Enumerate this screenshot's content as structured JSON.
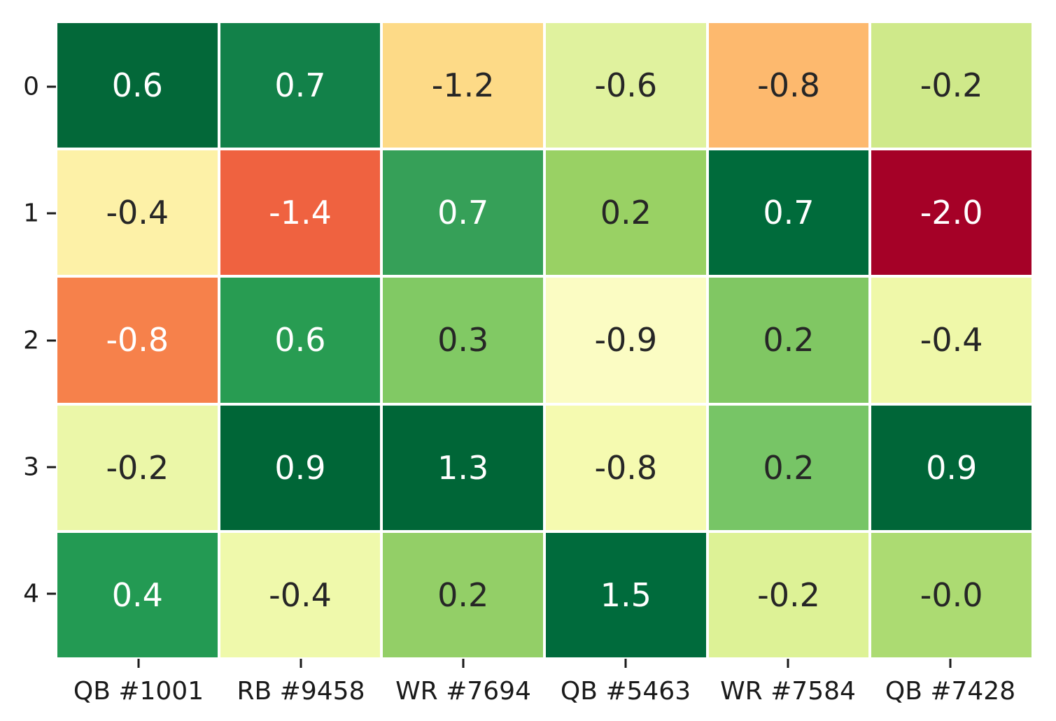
{
  "chart_data": {
    "type": "heatmap",
    "title": "",
    "xlabel": "",
    "ylabel": "",
    "colormap": "RdYlGn",
    "columns": [
      "QB #1001",
      "RB #9458",
      "WR #7694",
      "QB #5463",
      "WR #7584",
      "QB #7428"
    ],
    "rows": [
      "0",
      "1",
      "2",
      "3",
      "4"
    ],
    "values": [
      [
        0.6,
        0.7,
        -1.2,
        -0.6,
        -0.8,
        -0.2
      ],
      [
        -0.4,
        -1.4,
        0.7,
        0.2,
        0.7,
        -2.0
      ],
      [
        -0.8,
        0.6,
        0.3,
        -0.9,
        0.2,
        -0.4
      ],
      [
        -0.2,
        0.9,
        1.3,
        -0.8,
        0.2,
        0.9
      ],
      [
        0.4,
        -0.4,
        0.2,
        1.5,
        -0.2,
        -0.0
      ]
    ],
    "value_labels": [
      [
        "0.6",
        "0.7",
        "-1.2",
        "-0.6",
        "-0.8",
        "-0.2"
      ],
      [
        "-0.4",
        "-1.4",
        "0.7",
        "0.2",
        "0.7",
        "-2.0"
      ],
      [
        "-0.8",
        "0.6",
        "0.3",
        "-0.9",
        "0.2",
        "-0.4"
      ],
      [
        "-0.2",
        "0.9",
        "1.3",
        "-0.8",
        "0.2",
        "0.9"
      ],
      [
        "0.4",
        "-0.4",
        "0.2",
        "1.5",
        "-0.2",
        "-0.0"
      ]
    ],
    "cell_colors": [
      [
        "#036839",
        "#128149",
        "#fdda87",
        "#e0f29e",
        "#fdb96e",
        "#cfe98a"
      ],
      [
        "#fdf1a7",
        "#ef6240",
        "#36a058",
        "#99d164",
        "#006b3b",
        "#a50127"
      ],
      [
        "#f6814b",
        "#289c52",
        "#81c964",
        "#fbfcc3",
        "#80c763",
        "#eff8a9"
      ],
      [
        "#ebf7a8",
        "#006637",
        "#006637",
        "#f5fab0",
        "#77c566",
        "#006638"
      ],
      [
        "#239a53",
        "#eff9ab",
        "#93cf67",
        "#006b3c",
        "#ddf296",
        "#acdb72"
      ]
    ],
    "text_colors": [
      [
        "#ffffff",
        "#ffffff",
        "#262626",
        "#262626",
        "#262626",
        "#262626"
      ],
      [
        "#262626",
        "#ffffff",
        "#ffffff",
        "#262626",
        "#ffffff",
        "#ffffff"
      ],
      [
        "#ffffff",
        "#ffffff",
        "#262626",
        "#262626",
        "#262626",
        "#262626"
      ],
      [
        "#262626",
        "#ffffff",
        "#ffffff",
        "#262626",
        "#262626",
        "#ffffff"
      ],
      [
        "#ffffff",
        "#262626",
        "#262626",
        "#ffffff",
        "#262626",
        "#262626"
      ]
    ],
    "grid_line_color": "#ffffff",
    "axis_tick_color": "#1a1a1a",
    "legend": "none"
  }
}
